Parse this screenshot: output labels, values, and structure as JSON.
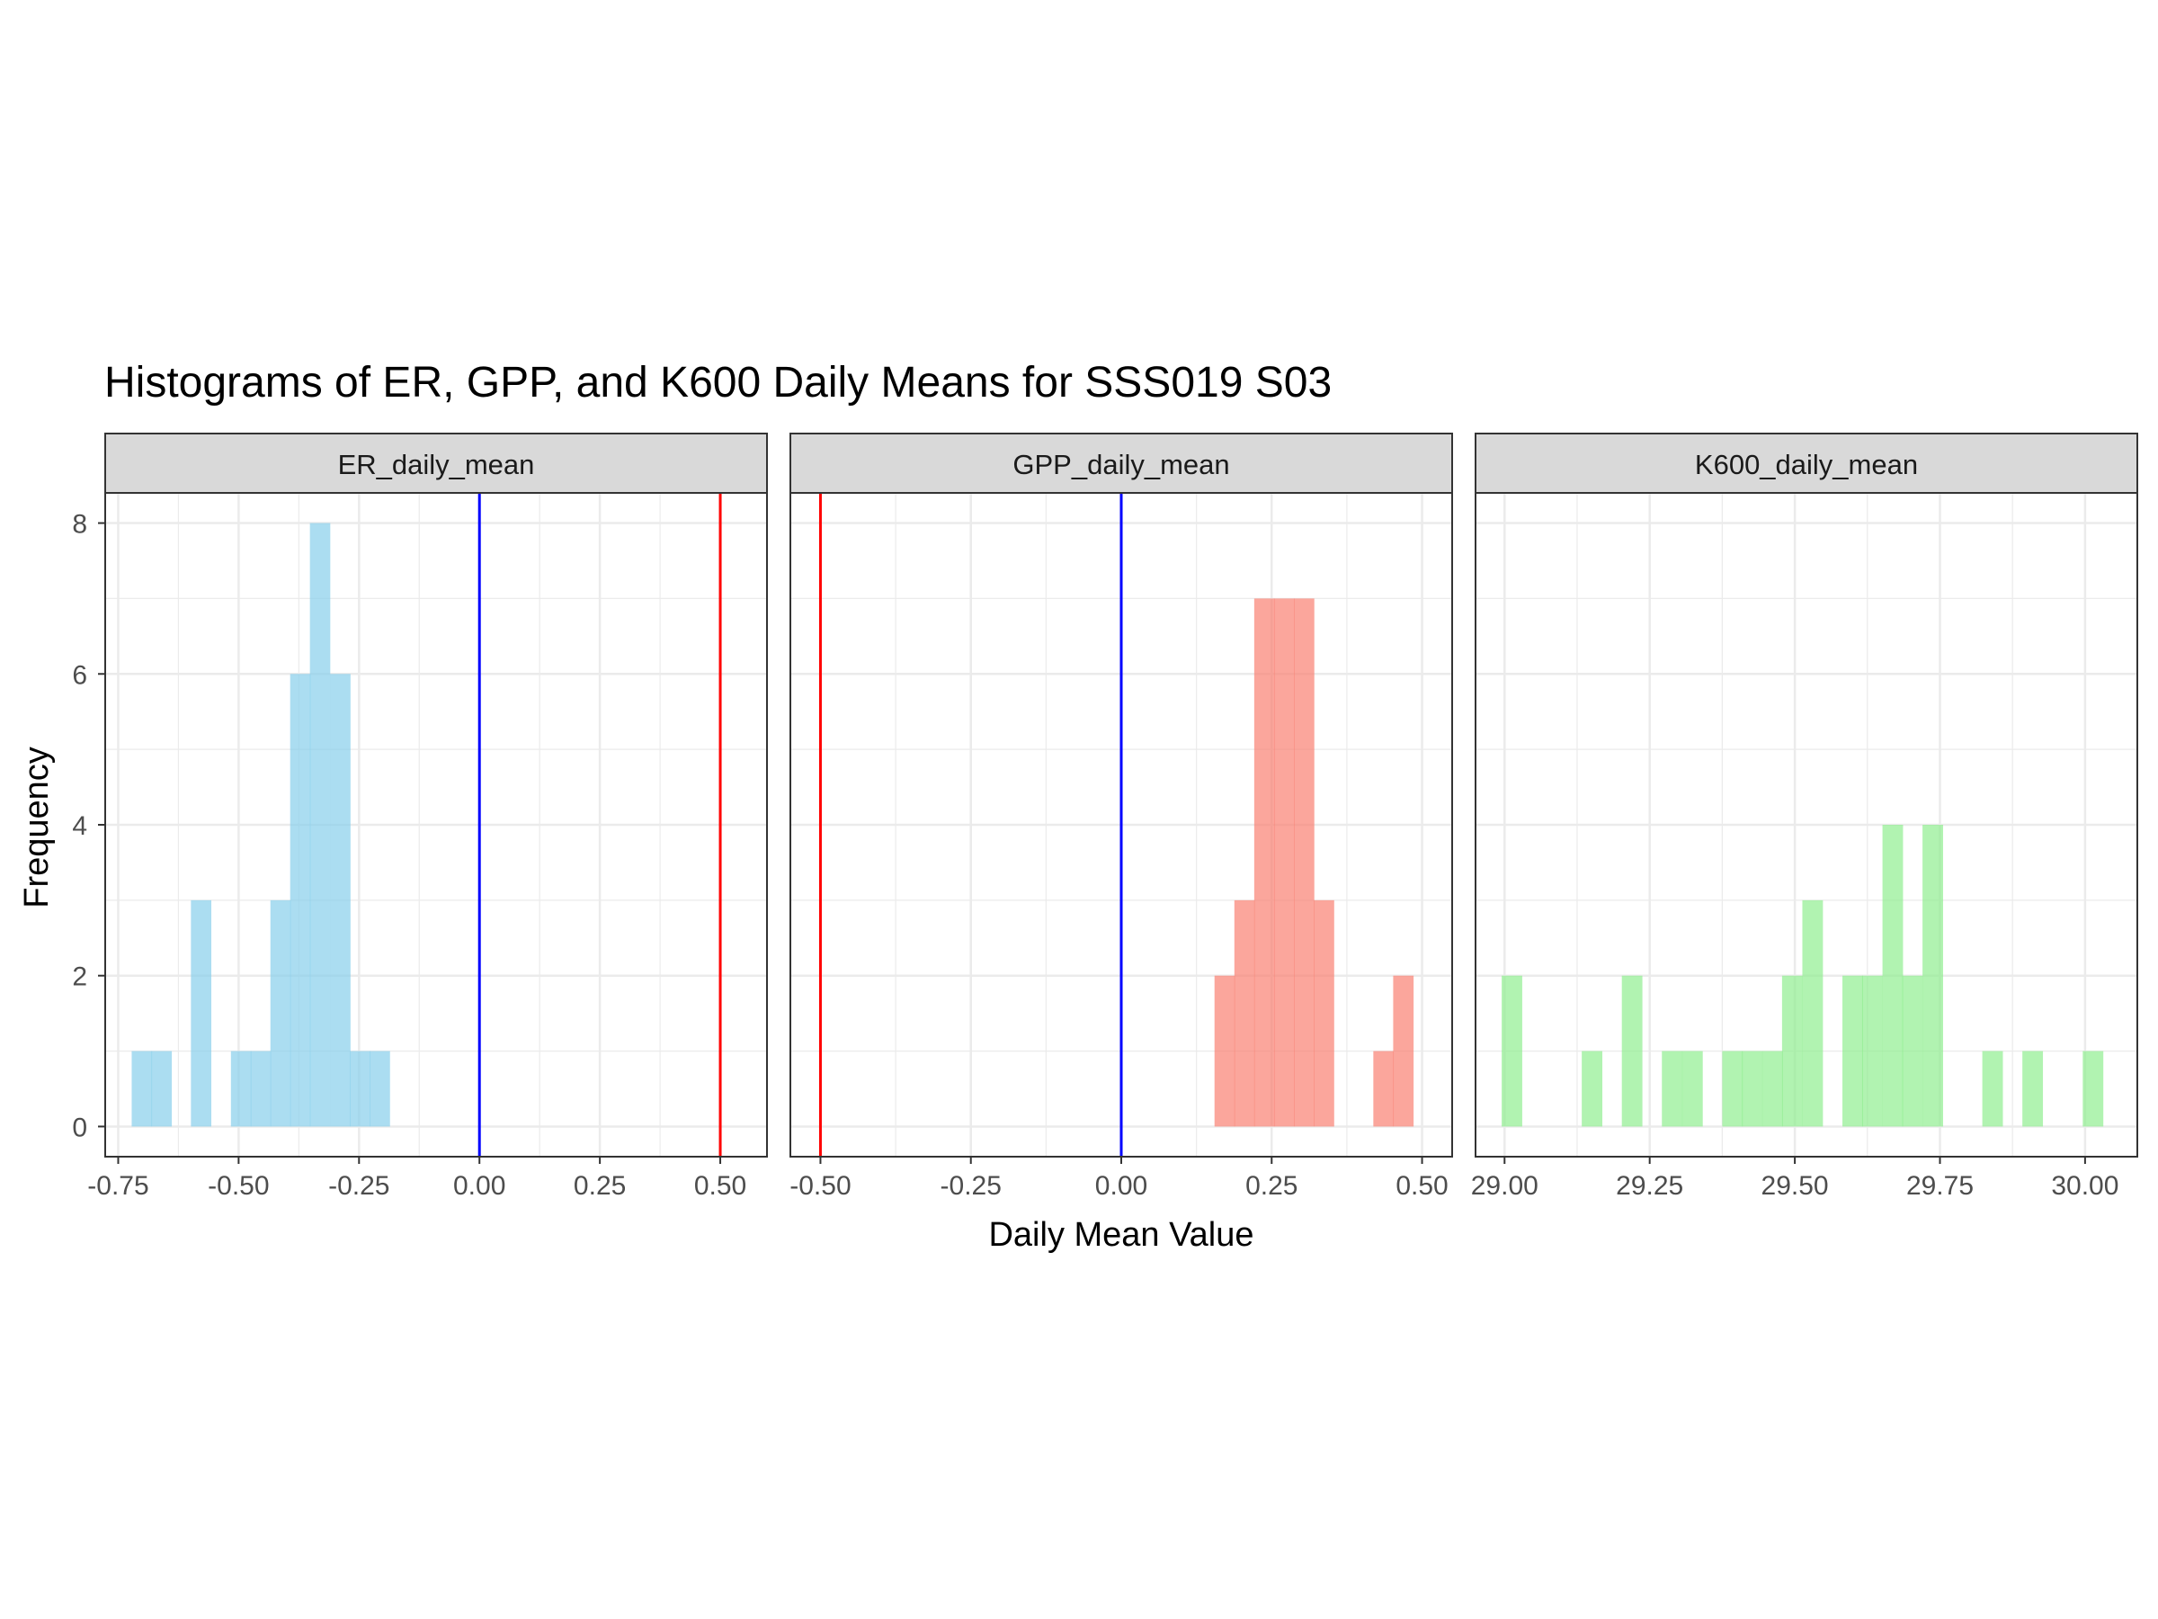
{
  "chart_data": {
    "type": "bar",
    "title": "Histograms of ER, GPP, and K600 Daily Means for SSS019 S03",
    "xlabel": "Daily Mean Value",
    "ylabel": "Frequency",
    "y_ticks": [
      "0",
      "2",
      "4",
      "6",
      "8"
    ],
    "ylim": [
      -0.4,
      8.4
    ],
    "grid": true,
    "panels": [
      {
        "strip_label": "ER_daily_mean",
        "fill_color": "#87CEEB",
        "xlim": [
          -0.777,
          0.597
        ],
        "x_ticks": [
          -0.75,
          -0.5,
          -0.25,
          0.0,
          0.25,
          0.5
        ],
        "x_tick_labels": [
          "-0.75",
          "-0.50",
          "-0.25",
          "0.00",
          "0.25",
          "0.50"
        ],
        "bin_width": 0.0412,
        "bins": [
          {
            "start": -0.722,
            "count": 1
          },
          {
            "start": -0.681,
            "count": 1
          },
          {
            "start": -0.599,
            "count": 3
          },
          {
            "start": -0.516,
            "count": 1
          },
          {
            "start": -0.475,
            "count": 1
          },
          {
            "start": -0.434,
            "count": 3
          },
          {
            "start": -0.393,
            "count": 6
          },
          {
            "start": -0.352,
            "count": 8
          },
          {
            "start": -0.31,
            "count": 6
          },
          {
            "start": -0.269,
            "count": 1
          },
          {
            "start": -0.228,
            "count": 1
          }
        ],
        "vlines": [
          {
            "x": 0.0,
            "color": "#0000FF"
          },
          {
            "x": 0.5,
            "color": "#FF0000"
          }
        ]
      },
      {
        "strip_label": "GPP_daily_mean",
        "fill_color": "#FA8072",
        "xlim": [
          -0.55,
          0.55
        ],
        "x_ticks": [
          -0.5,
          -0.25,
          0.0,
          0.25,
          0.5
        ],
        "x_tick_labels": [
          "-0.50",
          "-0.25",
          "0.00",
          "0.25",
          "0.50"
        ],
        "bin_width": 0.033,
        "bins": [
          {
            "start": 0.155,
            "count": 2
          },
          {
            "start": 0.188,
            "count": 3
          },
          {
            "start": 0.221,
            "count": 7
          },
          {
            "start": 0.254,
            "count": 7
          },
          {
            "start": 0.287,
            "count": 7
          },
          {
            "start": 0.32,
            "count": 3
          },
          {
            "start": 0.419,
            "count": 1
          },
          {
            "start": 0.452,
            "count": 2
          }
        ],
        "vlines": [
          {
            "x": -0.5,
            "color": "#FF0000"
          },
          {
            "x": 0.0,
            "color": "#0000FF"
          }
        ]
      },
      {
        "strip_label": "K600_daily_mean",
        "fill_color": "#90EE90",
        "xlim": [
          28.95,
          30.09
        ],
        "x_ticks": [
          29.0,
          29.25,
          29.5,
          29.75,
          30.0
        ],
        "x_tick_labels": [
          "29.00",
          "29.25",
          "29.50",
          "29.75",
          "30.00"
        ],
        "bin_width": 0.0345,
        "bins": [
          {
            "start": 28.995,
            "count": 2
          },
          {
            "start": 29.133,
            "count": 1
          },
          {
            "start": 29.202,
            "count": 2
          },
          {
            "start": 29.271,
            "count": 1
          },
          {
            "start": 29.306,
            "count": 1
          },
          {
            "start": 29.375,
            "count": 1
          },
          {
            "start": 29.409,
            "count": 1
          },
          {
            "start": 29.444,
            "count": 1
          },
          {
            "start": 29.478,
            "count": 2
          },
          {
            "start": 29.513,
            "count": 3
          },
          {
            "start": 29.582,
            "count": 2
          },
          {
            "start": 29.616,
            "count": 2
          },
          {
            "start": 29.651,
            "count": 4
          },
          {
            "start": 29.685,
            "count": 2
          },
          {
            "start": 29.72,
            "count": 4
          },
          {
            "start": 29.823,
            "count": 1
          },
          {
            "start": 29.892,
            "count": 1
          },
          {
            "start": 29.996,
            "count": 1
          }
        ],
        "vlines": []
      }
    ]
  }
}
